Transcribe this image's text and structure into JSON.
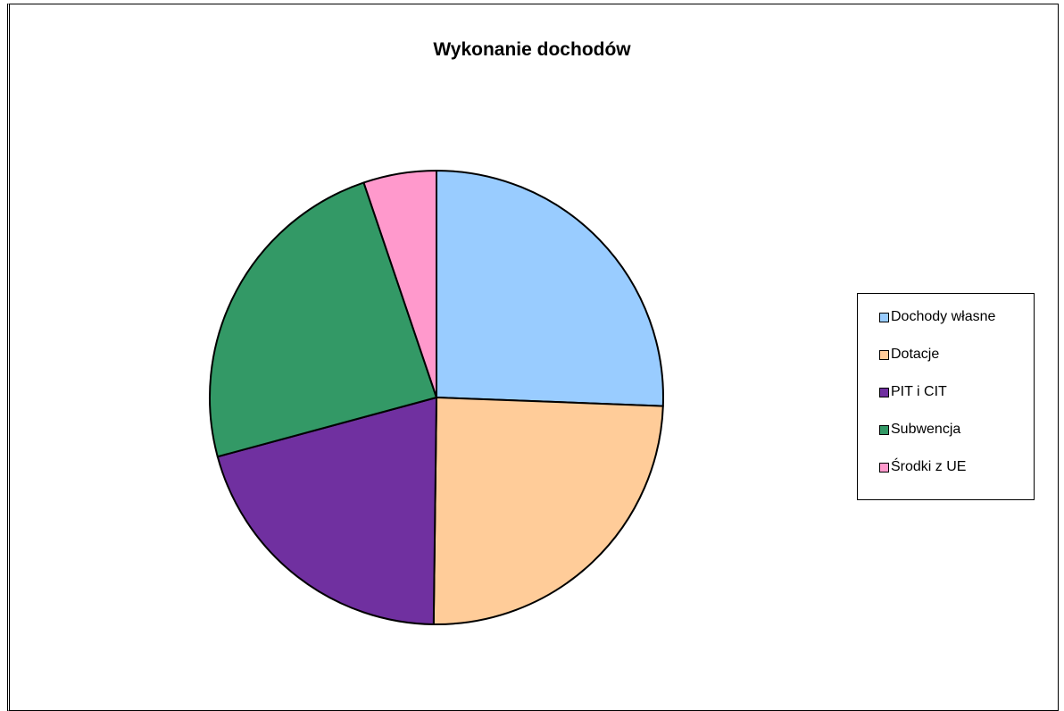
{
  "chart_data": {
    "type": "pie",
    "title": "Wykonanie dochodów",
    "categories": [
      "Dochody własne",
      "Dotacje",
      "PIT i CIT",
      "Subwencja",
      "Środki z UE"
    ],
    "values": [
      25.6,
      24.6,
      20.6,
      24.0,
      5.2
    ],
    "colors": [
      "#99ccff",
      "#ffcc99",
      "#7030a0",
      "#339966",
      "#ff99cc"
    ],
    "start_angle_deg": 0,
    "direction": "clockwise",
    "legend_position": "right"
  }
}
